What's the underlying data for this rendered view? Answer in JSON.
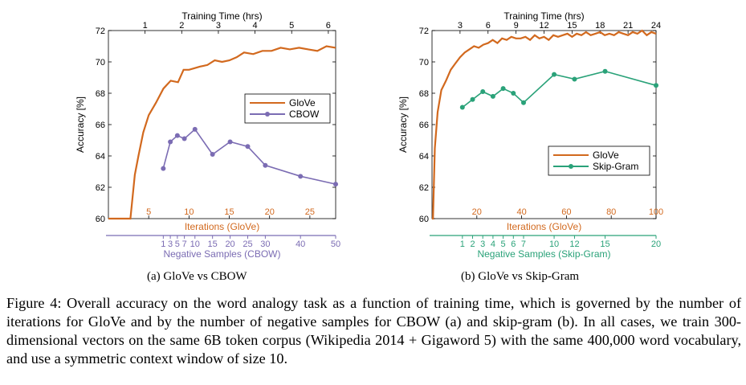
{
  "chart_data": [
    {
      "type": "line",
      "caption": "(a) GloVe vs CBOW",
      "ylabel": "Accuracy [%]",
      "ylim": [
        60,
        72
      ],
      "yticks": [
        60,
        62,
        64,
        66,
        68,
        70,
        72
      ],
      "top_axis": {
        "label": "Training Time (hrs)",
        "ticks": [
          1,
          2,
          3,
          4,
          5,
          6
        ],
        "range": [
          0,
          6.2
        ]
      },
      "iterations_axis": {
        "label": "Iterations (GloVe)",
        "ticks": [
          5,
          10,
          15,
          20,
          25
        ],
        "range": [
          0,
          28.2
        ],
        "color": "#d2691e"
      },
      "samples_axis": {
        "label": "Negative Samples (CBOW)",
        "ticks": [
          1,
          3,
          5,
          7,
          10,
          15,
          20,
          25,
          30,
          40,
          50
        ],
        "tick_labels": [
          "1",
          "3",
          "5",
          "7",
          "10",
          "15",
          "20",
          "25",
          "30",
          "40",
          "50"
        ],
        "range": [
          -14.6,
          50
        ],
        "color": "#7b6cb3"
      },
      "legend": {
        "position": "upper-right"
      },
      "series": [
        {
          "name": "GloVe",
          "color": "#d2691e",
          "marker": "none",
          "x_time": [
            0,
            0.6,
            0.72,
            0.82,
            0.95,
            1.1,
            1.3,
            1.5,
            1.7,
            1.9,
            2.05,
            2.2,
            2.35,
            2.5,
            2.7,
            2.9,
            3.1,
            3.3,
            3.5,
            3.7,
            3.95,
            4.2,
            4.45,
            4.7,
            4.95,
            5.2,
            5.45,
            5.7,
            5.95,
            6.2
          ],
          "y": [
            60,
            60,
            62.8,
            64,
            65.5,
            66.6,
            67.4,
            68.3,
            68.8,
            68.7,
            69.5,
            69.5,
            69.6,
            69.7,
            69.8,
            70.1,
            70.0,
            70.1,
            70.3,
            70.6,
            70.5,
            70.7,
            70.7,
            70.9,
            70.8,
            70.9,
            70.8,
            70.7,
            71.0,
            70.9
          ]
        },
        {
          "name": "CBOW",
          "color": "#7b6cb3",
          "marker": "circle",
          "x_samples": [
            1,
            3,
            5,
            7,
            10,
            15,
            20,
            25,
            30,
            40,
            50
          ],
          "y": [
            63.2,
            64.9,
            65.3,
            65.1,
            65.7,
            64.1,
            64.9,
            64.6,
            63.4,
            62.7,
            62.2
          ]
        }
      ]
    },
    {
      "type": "line",
      "caption": "(b) GloVe vs Skip-Gram",
      "ylabel": "Accuracy [%]",
      "ylim": [
        60,
        72
      ],
      "yticks": [
        60,
        62,
        64,
        66,
        68,
        70,
        72
      ],
      "top_axis": {
        "label": "Training Time (hrs)",
        "ticks": [
          3,
          6,
          9,
          12,
          15,
          18,
          21,
          24
        ],
        "range": [
          0,
          24
        ]
      },
      "iterations_axis": {
        "label": "Iterations (GloVe)",
        "ticks": [
          20,
          40,
          60,
          80,
          100
        ],
        "range": [
          0,
          100
        ],
        "color": "#d2691e"
      },
      "samples_axis": {
        "label": "Negative Samples (Skip-Gram)",
        "ticks": [
          1,
          2,
          3,
          4,
          5,
          6,
          7,
          10,
          12,
          15,
          20
        ],
        "range": [
          -1.98,
          20
        ],
        "color": "#2aa279"
      },
      "legend": {
        "position": "lower-right"
      },
      "series": [
        {
          "name": "GloVe",
          "color": "#d2691e",
          "marker": "none",
          "x_time": [
            0,
            0.1,
            0.3,
            0.6,
            1.0,
            1.5,
            2.0,
            2.5,
            3.0,
            3.5,
            4.0,
            4.5,
            5.0,
            5.5,
            6.0,
            6.5,
            7.0,
            7.5,
            8.0,
            8.5,
            9.0,
            9.5,
            10.0,
            10.5,
            11.0,
            11.5,
            12.0,
            12.5,
            13.0,
            13.5,
            14.0,
            14.5,
            15.0,
            15.5,
            16.0,
            16.5,
            17.0,
            17.5,
            18.0,
            18.5,
            19.0,
            19.5,
            20.0,
            20.5,
            21.0,
            21.5,
            22.0,
            22.5,
            23.0,
            23.5,
            24.0
          ],
          "y": [
            60,
            60,
            64.5,
            66.8,
            68.2,
            68.8,
            69.5,
            69.9,
            70.3,
            70.6,
            70.8,
            71.0,
            70.9,
            71.1,
            71.2,
            71.4,
            71.2,
            71.5,
            71.4,
            71.6,
            71.5,
            71.5,
            71.6,
            71.4,
            71.7,
            71.5,
            71.6,
            71.4,
            71.7,
            71.6,
            71.7,
            71.8,
            71.6,
            71.8,
            71.7,
            71.9,
            71.7,
            71.8,
            71.9,
            71.7,
            71.8,
            71.7,
            71.9,
            71.8,
            71.7,
            71.9,
            71.8,
            72.0,
            71.7,
            71.9,
            71.8
          ]
        },
        {
          "name": "Skip-Gram",
          "color": "#2aa279",
          "marker": "circle",
          "x_samples": [
            1,
            2,
            3,
            4,
            5,
            6,
            7,
            10,
            12,
            15,
            20
          ],
          "y": [
            67.1,
            67.6,
            68.1,
            67.8,
            68.3,
            68.0,
            67.4,
            69.2,
            68.9,
            69.4,
            68.5
          ]
        }
      ]
    }
  ],
  "figure_caption": "Figure 4: Overall accuracy on the word analogy task as a function of training time, which is governed by the number of iterations for GloVe and by the number of negative samples for CBOW (a) and skip-gram (b). In all cases, we train 300-dimensional vectors on the same 6B token corpus (Wikipedia 2014 + Gigaword 5) with the same 400,000 word vocabulary, and use a symmetric context window of size 10."
}
